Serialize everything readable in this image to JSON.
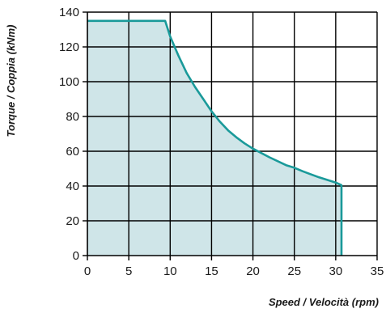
{
  "chart_data": {
    "type": "area",
    "xlabel": "Speed / Velocità (rpm)",
    "ylabel": "Torque / Coppia (kNm)",
    "xlim": [
      0,
      35
    ],
    "ylim": [
      0,
      140
    ],
    "x_ticks": [
      0,
      5,
      10,
      15,
      20,
      25,
      30,
      35
    ],
    "y_ticks": [
      0,
      20,
      40,
      60,
      80,
      100,
      120,
      140
    ],
    "grid": true,
    "legend": "none",
    "series": [
      {
        "x": [
          0,
          9.4,
          10,
          11,
          12,
          13,
          14,
          15,
          16,
          17,
          18,
          19,
          20,
          22,
          24,
          25,
          26,
          28,
          30,
          30.7,
          30.7
        ],
        "y": [
          135,
          135,
          126,
          115,
          105,
          97,
          90,
          83,
          77,
          72,
          68,
          64.5,
          61.5,
          56.5,
          52,
          50.5,
          48.5,
          45,
          42,
          40.5,
          0
        ]
      }
    ],
    "colors": {
      "line": "#1a9a9a",
      "fill": "#cfe5e8",
      "grid": "#000000",
      "axis": "#000000"
    }
  }
}
